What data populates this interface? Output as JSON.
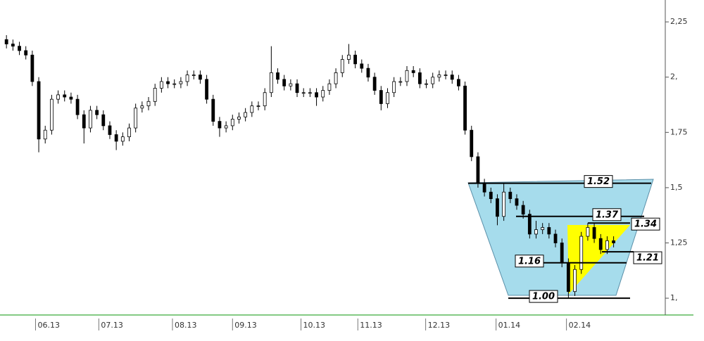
{
  "chart_data": {
    "type": "candlestick",
    "open": [
      2.17,
      2.15,
      2.14,
      2.12,
      2.1,
      1.98,
      1.72,
      1.76,
      1.9,
      1.92,
      1.91,
      1.9,
      1.83,
      1.77,
      1.85,
      1.83,
      1.78,
      1.74,
      1.71,
      1.73,
      1.77,
      1.86,
      1.87,
      1.89,
      1.95,
      1.98,
      1.97,
      1.97,
      1.98,
      2.01,
      2.01,
      1.99,
      1.9,
      1.8,
      1.77,
      1.78,
      1.81,
      1.82,
      1.84,
      1.87,
      1.87,
      1.93,
      2.02,
      1.99,
      1.96,
      1.97,
      1.93,
      1.93,
      1.93,
      1.91,
      1.94,
      1.97,
      2.02,
      2.08,
      2.1,
      2.06,
      2.04,
      2.0,
      1.94,
      1.88,
      1.93,
      1.98,
      1.98,
      2.03,
      2.02,
      1.97,
      1.97,
      2.0,
      2.01,
      2.01,
      1.99,
      1.96,
      1.76,
      1.64,
      1.52,
      1.48,
      1.45,
      1.37,
      1.48,
      1.45,
      1.42,
      1.38,
      1.29,
      1.31,
      1.32,
      1.29,
      1.25,
      1.16,
      1.03,
      1.13,
      1.28,
      1.32,
      1.27,
      1.22,
      1.26
    ],
    "high": [
      2.19,
      2.17,
      2.16,
      2.14,
      2.12,
      2.0,
      1.78,
      1.92,
      1.94,
      1.94,
      1.93,
      1.92,
      1.85,
      1.87,
      1.87,
      1.85,
      1.8,
      1.76,
      1.75,
      1.79,
      1.88,
      1.89,
      1.91,
      1.97,
      2.0,
      2.0,
      1.99,
      2.0,
      2.03,
      2.03,
      2.03,
      2.01,
      1.92,
      1.82,
      1.8,
      1.83,
      1.84,
      1.86,
      1.89,
      1.89,
      1.95,
      2.14,
      2.04,
      2.01,
      1.99,
      1.99,
      1.95,
      1.95,
      1.95,
      1.96,
      1.99,
      2.04,
      2.1,
      2.15,
      2.12,
      2.08,
      2.06,
      2.02,
      1.96,
      1.95,
      2.0,
      2.0,
      2.05,
      2.05,
      2.04,
      1.99,
      2.02,
      2.03,
      2.03,
      2.03,
      2.01,
      1.98,
      1.78,
      1.66,
      1.54,
      1.5,
      1.47,
      1.52,
      1.5,
      1.47,
      1.44,
      1.4,
      1.35,
      1.34,
      1.34,
      1.31,
      1.27,
      1.18,
      1.15,
      1.3,
      1.34,
      1.34,
      1.29,
      1.28,
      1.28
    ],
    "low": [
      2.13,
      2.12,
      2.1,
      2.08,
      1.96,
      1.66,
      1.7,
      1.74,
      1.88,
      1.89,
      1.88,
      1.81,
      1.7,
      1.75,
      1.81,
      1.76,
      1.72,
      1.67,
      1.69,
      1.71,
      1.75,
      1.84,
      1.85,
      1.87,
      1.93,
      1.95,
      1.95,
      1.95,
      1.96,
      1.99,
      1.97,
      1.88,
      1.78,
      1.73,
      1.75,
      1.76,
      1.79,
      1.8,
      1.82,
      1.85,
      1.85,
      1.91,
      1.97,
      1.94,
      1.94,
      1.91,
      1.91,
      1.91,
      1.87,
      1.89,
      1.92,
      1.95,
      2.0,
      2.06,
      2.04,
      2.02,
      1.98,
      1.92,
      1.85,
      1.86,
      1.91,
      1.96,
      1.96,
      2.0,
      1.95,
      1.95,
      1.95,
      1.98,
      1.99,
      1.97,
      1.94,
      1.74,
      1.62,
      1.5,
      1.46,
      1.43,
      1.33,
      1.35,
      1.43,
      1.4,
      1.36,
      1.27,
      1.27,
      1.29,
      1.27,
      1.23,
      1.14,
      1.0,
      1.01,
      1.11,
      1.26,
      1.25,
      1.2,
      1.2,
      1.23
    ],
    "close": [
      2.15,
      2.14,
      2.12,
      2.1,
      1.98,
      1.72,
      1.76,
      1.9,
      1.92,
      1.91,
      1.9,
      1.83,
      1.77,
      1.85,
      1.83,
      1.78,
      1.74,
      1.71,
      1.73,
      1.77,
      1.86,
      1.87,
      1.89,
      1.95,
      1.98,
      1.97,
      1.97,
      1.98,
      2.01,
      2.01,
      1.99,
      1.9,
      1.8,
      1.77,
      1.78,
      1.81,
      1.82,
      1.84,
      1.87,
      1.87,
      1.93,
      2.02,
      1.99,
      1.96,
      1.97,
      1.93,
      1.93,
      1.93,
      1.91,
      1.94,
      1.97,
      2.02,
      2.08,
      2.1,
      2.06,
      2.04,
      2.0,
      1.94,
      1.88,
      1.93,
      1.98,
      1.98,
      2.03,
      2.02,
      1.97,
      1.97,
      2.0,
      2.01,
      2.01,
      1.99,
      1.96,
      1.76,
      1.64,
      1.52,
      1.48,
      1.45,
      1.37,
      1.48,
      1.45,
      1.42,
      1.38,
      1.29,
      1.31,
      1.32,
      1.29,
      1.25,
      1.16,
      1.03,
      1.13,
      1.28,
      1.32,
      1.27,
      1.22,
      1.26,
      1.25
    ],
    "xlim": [
      -1,
      102
    ],
    "xticks": [
      {
        "value": 4.5,
        "label": "06.13"
      },
      {
        "value": 14.3,
        "label": "07.13"
      },
      {
        "value": 25.7,
        "label": "08.13"
      },
      {
        "value": 35,
        "label": "09.13"
      },
      {
        "value": 45.6,
        "label": "10.13"
      },
      {
        "value": 54.4,
        "label": "11.13"
      },
      {
        "value": 64.9,
        "label": "12.13"
      },
      {
        "value": 75.8,
        "label": "01.14"
      },
      {
        "value": 86.7,
        "label": "02.14"
      }
    ],
    "ylim": [
      0.924,
      2.349
    ],
    "yticks": [
      {
        "value": 2.25,
        "label": "2,25"
      },
      {
        "value": 2,
        "label": "2,"
      },
      {
        "value": 1.75,
        "label": "1,75"
      },
      {
        "value": 1.5,
        "label": "1,5"
      },
      {
        "value": 1.25,
        "label": "1,25"
      },
      {
        "value": 1,
        "label": "1,"
      }
    ],
    "levels": [
      {
        "value": 1.52,
        "label": "1.52"
      },
      {
        "value": 1.37,
        "label": "1.37"
      },
      {
        "value": 1.34,
        "label": "1.34"
      },
      {
        "value": 1.16,
        "label": "1.16"
      },
      {
        "value": 1.21,
        "label": "1.21"
      },
      {
        "value": 1.0,
        "label": "1.00"
      }
    ]
  }
}
